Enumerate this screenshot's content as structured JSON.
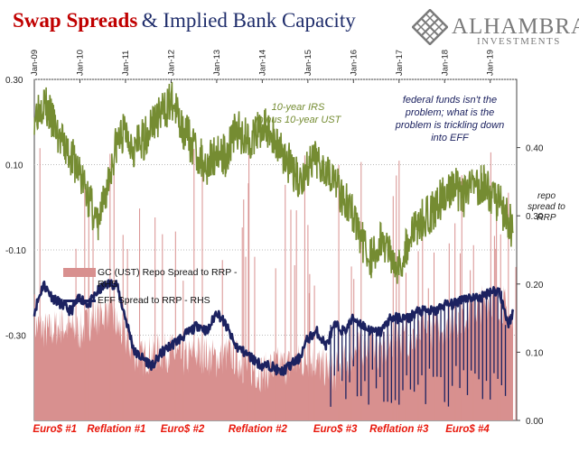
{
  "header": {
    "title_red": "Swap Spreads",
    "title_blue": "& Implied Bank Capacity"
  },
  "logo": {
    "name": "ALHAMBRA",
    "sub": "INVESTMENTS",
    "icon": "diamond-lattice-icon"
  },
  "annotations": {
    "irs": [
      "10-year IRS",
      "minus 10-year UST"
    ],
    "fedfunds": [
      "federal funds isn't the",
      "problem; what is the",
      "problem is trickling down",
      "into EFF"
    ],
    "rhs_label": [
      "repo",
      "spread to",
      "RRP"
    ]
  },
  "legend": {
    "repo": [
      "GC (UST) Repo Spread to RRP -",
      "RHS"
    ],
    "eff": "EFF Spread to RRP - RHS"
  },
  "periods": [
    "Euro$ #1",
    "Reflation #1",
    "Euro$ #2",
    "Reflation #2",
    "Euro$ #3",
    "Reflation #3",
    "Euro$ #4"
  ],
  "colors": {
    "green": "#758c32",
    "repo": "#d8908f",
    "eff": "#1c2260",
    "period": "#e8180c",
    "title_red": "#c00000",
    "title_blue": "#1f2d6b"
  },
  "chart_data": {
    "type": "line",
    "x": [
      "Jan-09",
      "Jan-10",
      "Jan-11",
      "Jan-12",
      "Jan-13",
      "Jan-14",
      "Jan-15",
      "Jan-16",
      "Jan-17",
      "Jan-18",
      "Jan-19"
    ],
    "left_axis": {
      "ticks": [
        "0.30",
        "0.10",
        "-0.10",
        "-0.30"
      ],
      "values": [
        0.3,
        0.1,
        -0.1,
        -0.3
      ],
      "ylim": [
        -0.5,
        0.3
      ]
    },
    "right_axis": {
      "ticks": [
        "0.40",
        "0.30",
        "0.20",
        "0.10",
        "0.00"
      ],
      "values": [
        0.4,
        0.3,
        0.2,
        0.1,
        0.0
      ],
      "ylim": [
        0.0,
        0.5
      ]
    },
    "series": [
      {
        "name": "10-year IRS minus 10-year UST",
        "axis": "left",
        "style": "line",
        "x": [
          2009.0,
          2009.2,
          2009.4,
          2009.6,
          2009.8,
          2010.0,
          2010.2,
          2010.4,
          2010.6,
          2010.8,
          2011.0,
          2011.2,
          2011.4,
          2011.6,
          2011.8,
          2012.0,
          2012.2,
          2012.4,
          2012.6,
          2012.8,
          2013.0,
          2013.2,
          2013.4,
          2013.6,
          2013.8,
          2014.0,
          2014.2,
          2014.4,
          2014.6,
          2014.8,
          2015.0,
          2015.2,
          2015.4,
          2015.6,
          2015.8,
          2016.0,
          2016.2,
          2016.4,
          2016.6,
          2016.8,
          2017.0,
          2017.2,
          2017.4,
          2017.6,
          2017.8,
          2018.0,
          2018.2,
          2018.4,
          2018.6,
          2018.8,
          2019.0,
          2019.2,
          2019.4,
          2019.5
        ],
        "values": [
          0.22,
          0.25,
          0.2,
          0.15,
          0.12,
          0.08,
          0.02,
          -0.05,
          0.05,
          0.15,
          0.18,
          0.14,
          0.16,
          0.2,
          0.22,
          0.25,
          0.2,
          0.16,
          0.12,
          0.1,
          0.13,
          0.12,
          0.18,
          0.17,
          0.16,
          0.19,
          0.17,
          0.14,
          0.1,
          0.06,
          0.09,
          0.11,
          0.1,
          0.06,
          0.02,
          -0.02,
          -0.08,
          -0.12,
          -0.08,
          -0.1,
          -0.14,
          -0.08,
          -0.04,
          -0.02,
          0.0,
          0.03,
          0.05,
          0.02,
          0.04,
          0.06,
          0.03,
          0.01,
          -0.03,
          -0.06
        ]
      },
      {
        "name": "GC (UST) Repo Spread to RRP - RHS",
        "axis": "right",
        "style": "area",
        "x": [
          2009.0,
          2009.3,
          2009.6,
          2010.0,
          2010.3,
          2010.6,
          2011.0,
          2011.3,
          2011.6,
          2012.0,
          2012.3,
          2012.6,
          2013.0,
          2013.3,
          2013.6,
          2014.0,
          2014.3,
          2014.6,
          2015.0,
          2015.3,
          2015.6,
          2016.0,
          2016.3,
          2016.6,
          2017.0,
          2017.3,
          2017.6,
          2018.0,
          2018.3,
          2018.6,
          2019.0,
          2019.3,
          2019.5
        ],
        "values": [
          0.14,
          0.13,
          0.14,
          0.13,
          0.15,
          0.16,
          0.12,
          0.09,
          0.1,
          0.1,
          0.09,
          0.1,
          0.09,
          0.1,
          0.08,
          0.07,
          0.08,
          0.08,
          0.09,
          0.08,
          0.07,
          0.1,
          0.11,
          0.1,
          0.12,
          0.12,
          0.13,
          0.14,
          0.15,
          0.16,
          0.18,
          0.17,
          0.14
        ]
      },
      {
        "name": "EFF Spread to RRP - RHS",
        "axis": "right",
        "style": "line",
        "x": [
          2009.0,
          2009.2,
          2009.4,
          2009.6,
          2009.8,
          2010.0,
          2010.2,
          2010.4,
          2010.6,
          2010.8,
          2011.0,
          2011.2,
          2011.4,
          2011.6,
          2011.8,
          2012.0,
          2012.2,
          2012.4,
          2012.6,
          2012.8,
          2013.0,
          2013.2,
          2013.4,
          2013.6,
          2013.8,
          2014.0,
          2014.2,
          2014.4,
          2014.6,
          2014.8,
          2015.0,
          2015.2,
          2015.4,
          2015.6,
          2015.8,
          2016.0,
          2016.2,
          2016.4,
          2016.6,
          2016.8,
          2017.0,
          2017.2,
          2017.4,
          2017.6,
          2017.8,
          2018.0,
          2018.2,
          2018.4,
          2018.6,
          2018.8,
          2019.0,
          2019.2,
          2019.4,
          2019.5
        ],
        "values": [
          0.16,
          0.2,
          0.18,
          0.17,
          0.16,
          0.18,
          0.17,
          0.19,
          0.2,
          0.2,
          0.15,
          0.1,
          0.09,
          0.08,
          0.1,
          0.11,
          0.12,
          0.13,
          0.14,
          0.13,
          0.16,
          0.14,
          0.11,
          0.1,
          0.09,
          0.08,
          0.08,
          0.07,
          0.08,
          0.09,
          0.12,
          0.13,
          0.11,
          0.14,
          0.13,
          0.15,
          0.14,
          0.13,
          0.13,
          0.15,
          0.15,
          0.15,
          0.16,
          0.16,
          0.16,
          0.17,
          0.17,
          0.18,
          0.18,
          0.18,
          0.19,
          0.19,
          0.14,
          0.16
        ]
      }
    ]
  }
}
